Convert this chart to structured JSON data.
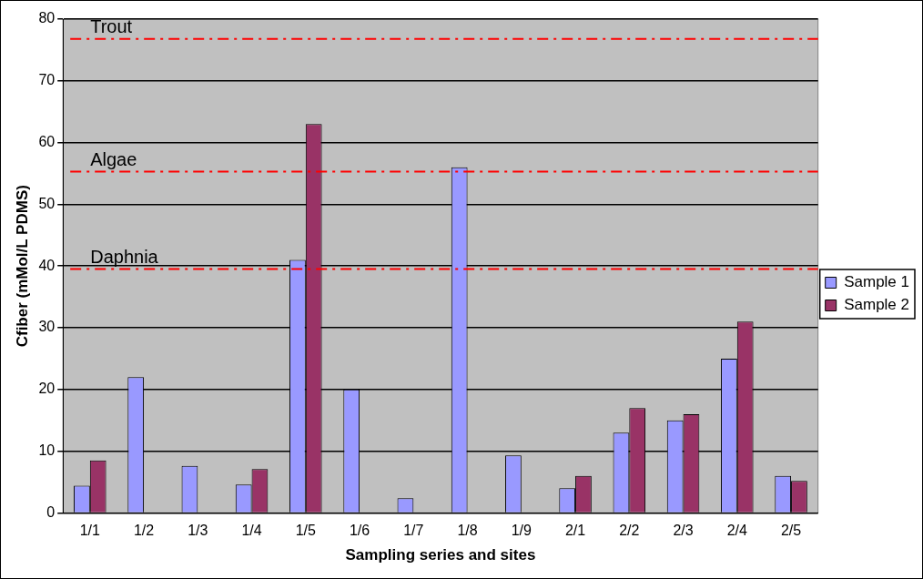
{
  "chart_data": {
    "type": "bar",
    "xlabel": "Sampling series and sites",
    "ylabel": "Cfiber (mMol/L PDMS)",
    "categories": [
      "1/1",
      "1/2",
      "1/3",
      "1/4",
      "1/5",
      "1/6",
      "1/7",
      "1/8",
      "1/9",
      "2/1",
      "2/2",
      "2/3",
      "2/4",
      "2/5"
    ],
    "series": [
      {
        "name": "Sample 1",
        "color": "#9999ff",
        "values": [
          4.4,
          22,
          7.6,
          4.6,
          41,
          20,
          2.4,
          56,
          9.3,
          4,
          13,
          15,
          25,
          6
        ]
      },
      {
        "name": "Sample 2",
        "color": "#993366",
        "values": [
          8.5,
          null,
          null,
          7.1,
          63,
          null,
          null,
          null,
          null,
          6,
          17,
          16,
          31,
          5.2
        ]
      }
    ],
    "ylim": [
      0,
      80
    ],
    "yticks": [
      0,
      10,
      20,
      30,
      40,
      50,
      60,
      70,
      80
    ],
    "grid": "y",
    "legend": "right",
    "ref_lines": [
      {
        "axis": "y",
        "value": 76.8,
        "label": "Trout",
        "color": "#ff0000",
        "line_style": "dashdot"
      },
      {
        "axis": "y",
        "value": 55.3,
        "label": "Algae",
        "color": "#ff0000",
        "line_style": "dashdot"
      },
      {
        "axis": "y",
        "value": 39.5,
        "label": "Daphnia",
        "color": "#ff0000",
        "line_style": "dashdot"
      }
    ]
  }
}
